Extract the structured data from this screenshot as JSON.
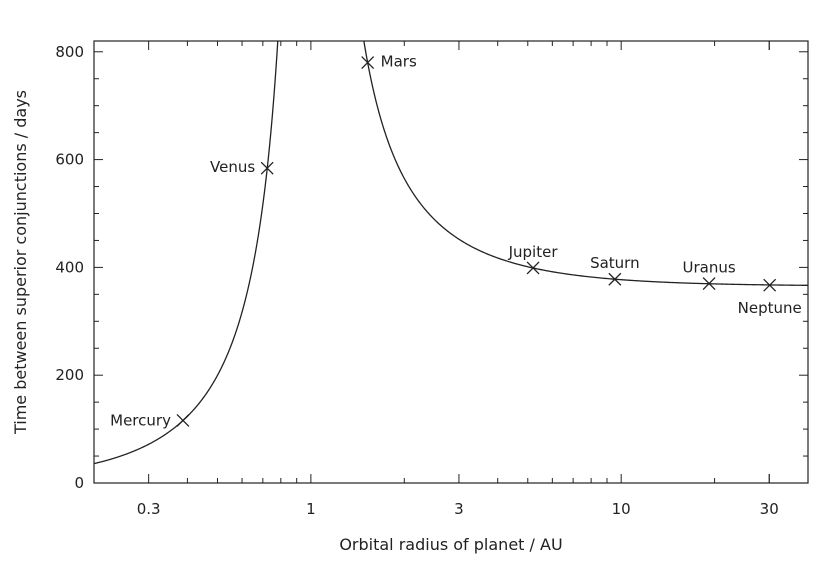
{
  "chart_data": {
    "type": "scatter",
    "title": "",
    "xlabel": "Orbital radius of planet / AU",
    "ylabel": "Time between superior conjunctions / days",
    "xscale": "log",
    "xlim": [
      0.2,
      40
    ],
    "ylim": [
      0,
      820
    ],
    "xticks": [
      0.3,
      1,
      3,
      10,
      30
    ],
    "xtick_labels": [
      "0.3",
      "1",
      "3",
      "10",
      "30"
    ],
    "yticks": [
      0,
      200,
      400,
      600,
      800
    ],
    "ytick_labels": [
      "0",
      "200",
      "400",
      "600",
      "800"
    ],
    "grid": false,
    "legend": "none",
    "curve": "synodic period vs orbital radius",
    "points": [
      {
        "label": "Mercury",
        "x": 0.387,
        "y": 116
      },
      {
        "label": "Venus",
        "x": 0.723,
        "y": 584
      },
      {
        "label": "Mars",
        "x": 1.524,
        "y": 780
      },
      {
        "label": "Jupiter",
        "x": 5.2,
        "y": 399
      },
      {
        "label": "Saturn",
        "x": 9.54,
        "y": 378
      },
      {
        "label": "Uranus",
        "x": 19.2,
        "y": 370
      },
      {
        "label": "Neptune",
        "x": 30.1,
        "y": 367
      }
    ]
  }
}
